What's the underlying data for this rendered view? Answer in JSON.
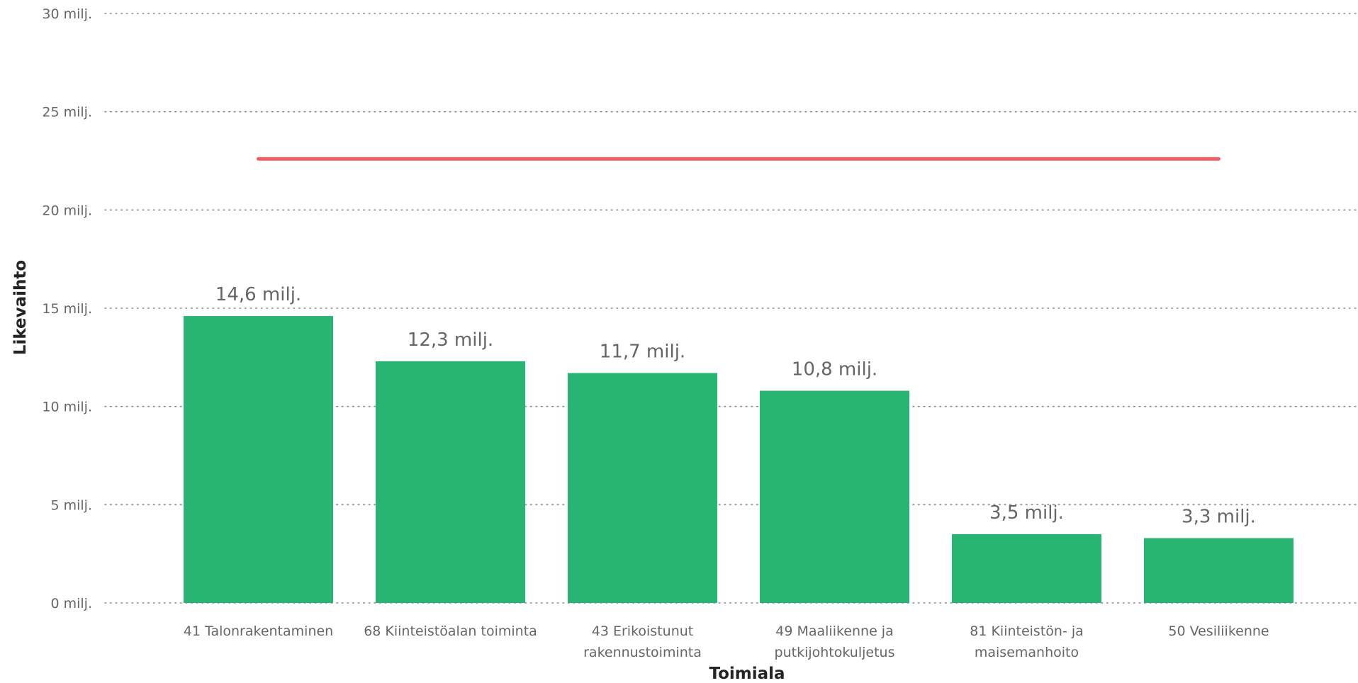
{
  "chart_data": {
    "type": "bar",
    "xlabel": "Toimiala",
    "ylabel": "Likevaihto",
    "categories": [
      [
        "41 Talonrakentaminen"
      ],
      [
        "68 Kiinteistöalan toiminta"
      ],
      [
        "43 Erikoistunut",
        "rakennustoiminta"
      ],
      [
        "49 Maaliikenne ja",
        "putkijohtokuljetus"
      ],
      [
        "81 Kiinteistön- ja",
        "maisemanhoito"
      ],
      [
        "50 Vesiliikenne"
      ]
    ],
    "values": [
      14600000,
      12300000,
      11700000,
      10800000,
      3500000,
      3300000
    ],
    "data_labels": [
      "14,6 milj.",
      "12,3 milj.",
      "11,7 milj.",
      "10,8 milj.",
      "3,5 milj.",
      "3,3 milj."
    ],
    "reference_line": 22600000,
    "ylim": [
      0,
      30000000
    ],
    "yticks": [
      0,
      5000000,
      10000000,
      15000000,
      20000000,
      25000000,
      30000000
    ],
    "ytick_labels": [
      "0 milj.",
      "5 milj.",
      "10 milj.",
      "15 milj.",
      "20 milj.",
      "25 milj.",
      "30 milj."
    ],
    "grid": true,
    "colors": {
      "bar": "#28B473",
      "reference_line": "#EF5E62",
      "grid": "#8A8A8A"
    }
  }
}
